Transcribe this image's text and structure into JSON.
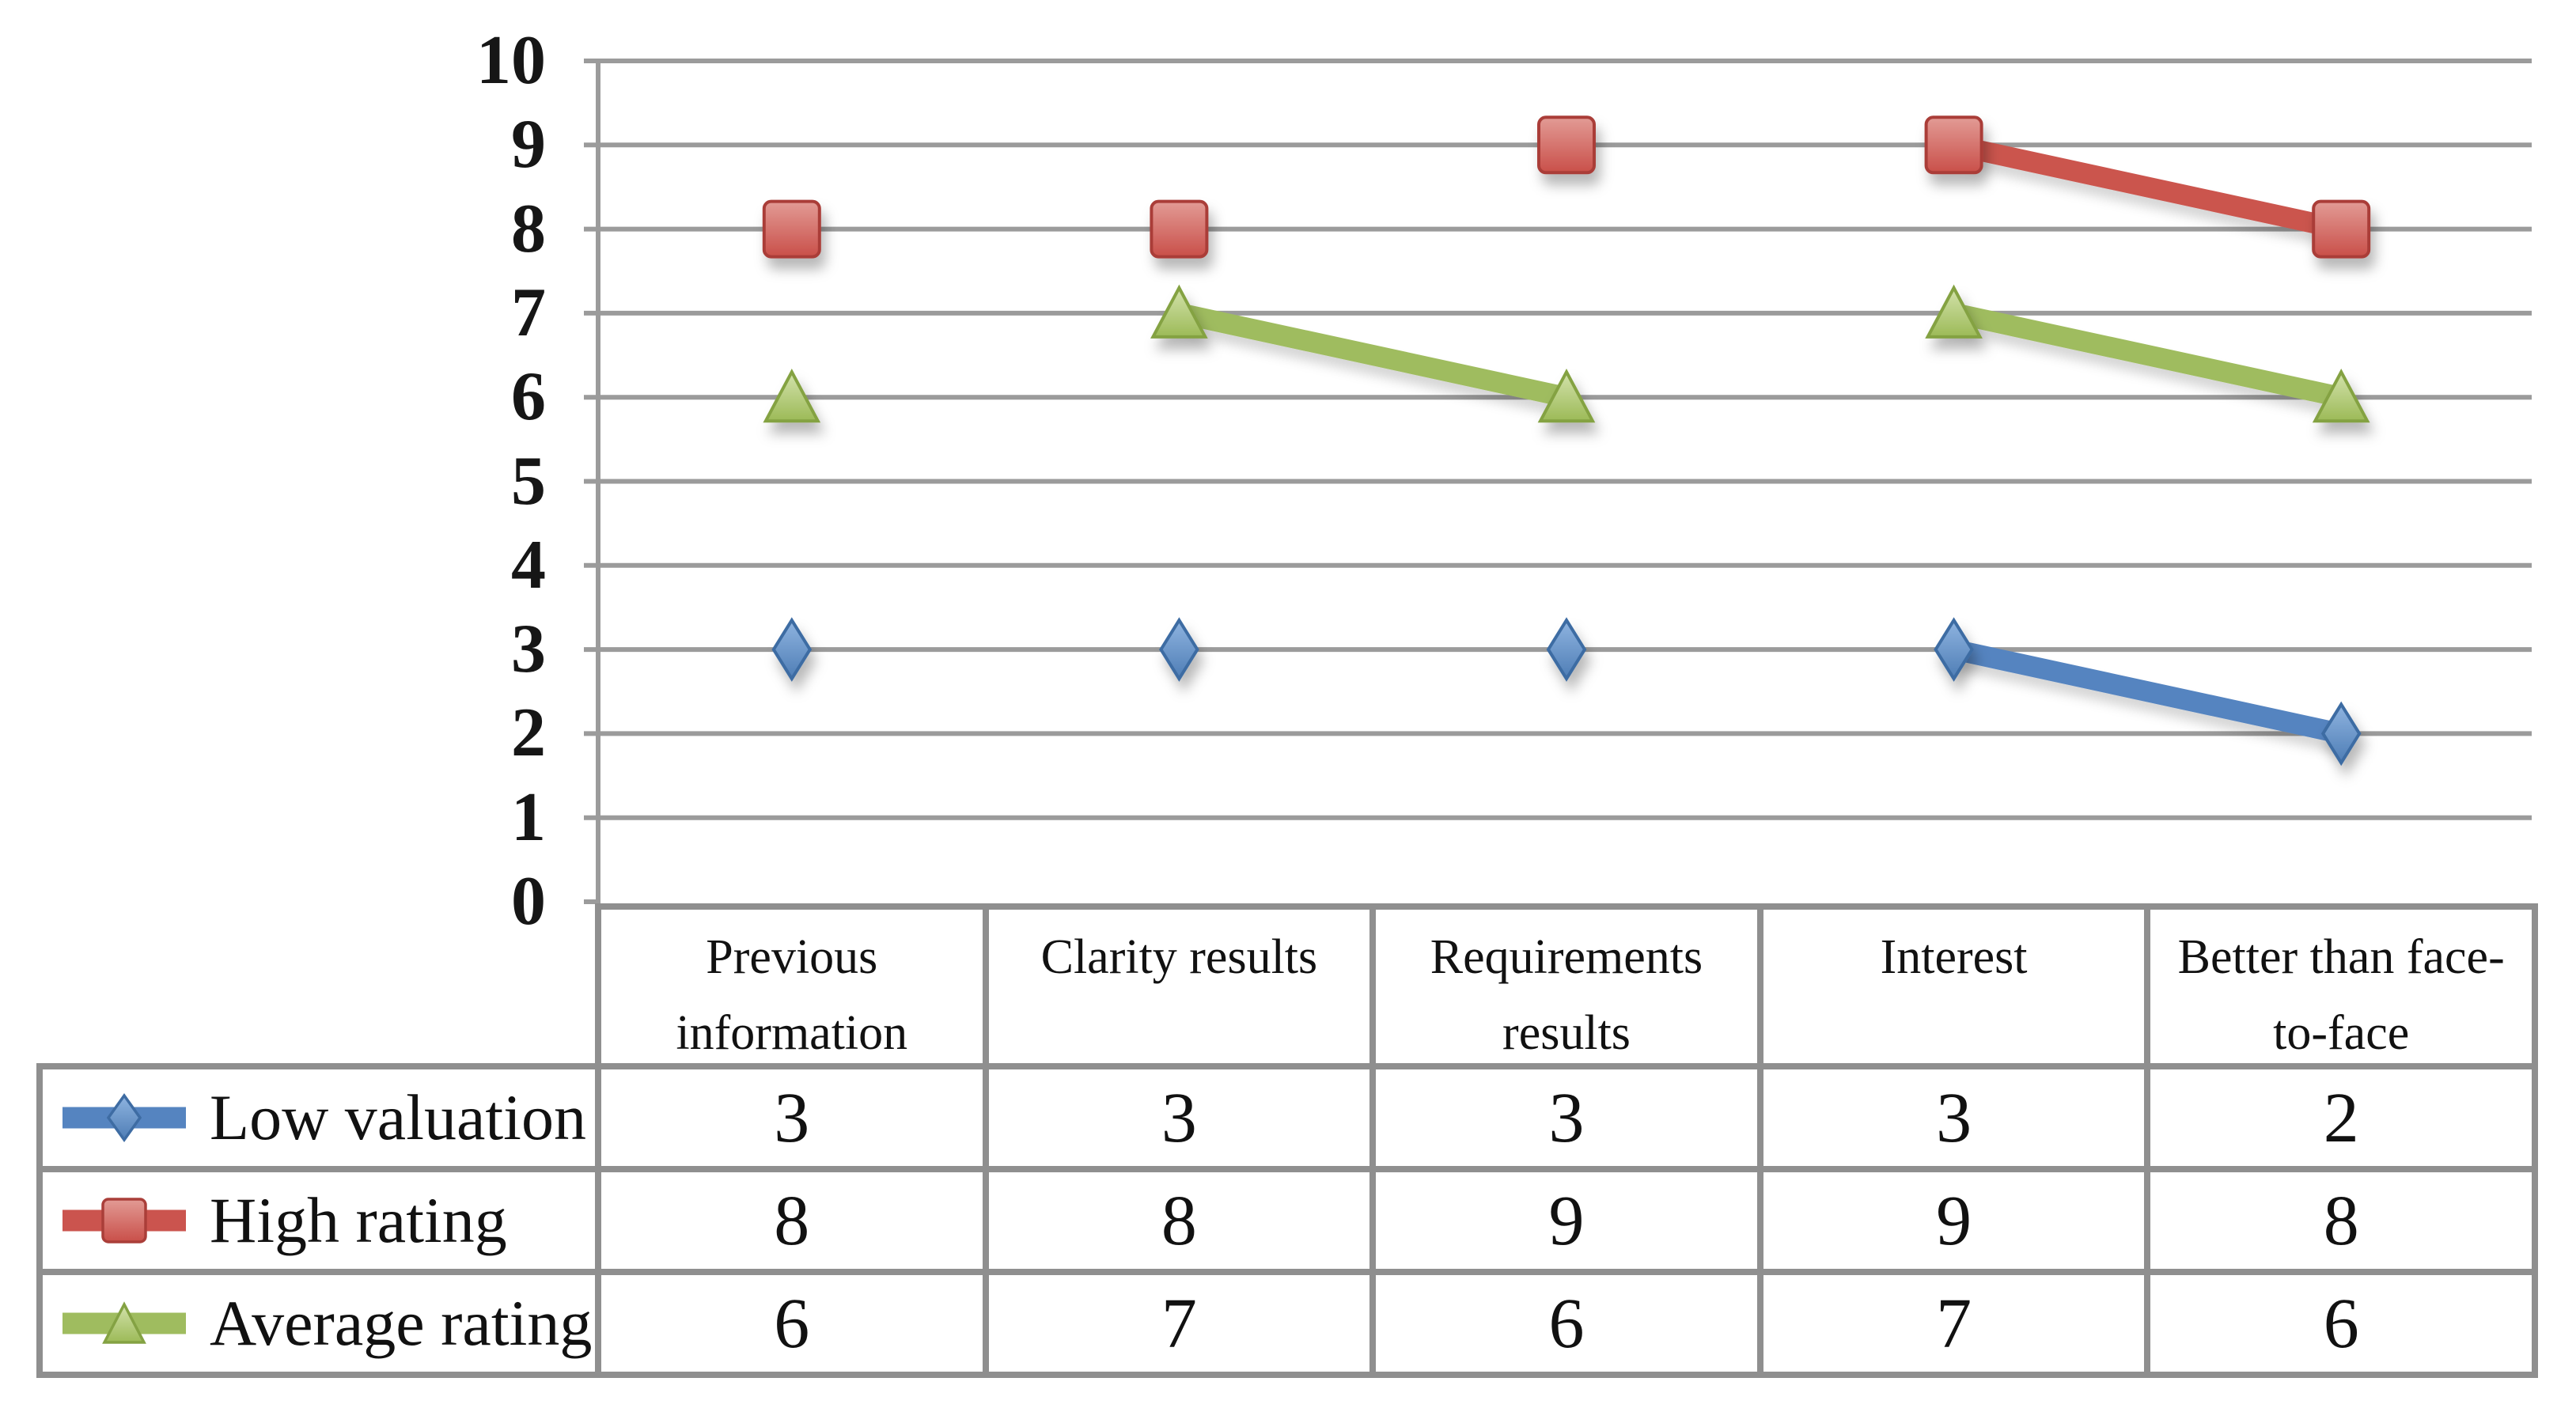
{
  "chart_data": {
    "type": "line",
    "title": "",
    "xlabel": "",
    "ylabel": "",
    "categories": [
      "Previous information",
      "Clarity results",
      "Requirements results",
      "Interest",
      "Better than face-to-face"
    ],
    "series": [
      {
        "name": "Low valuation",
        "marker": "diamond",
        "values": [
          3,
          3,
          3,
          3,
          2
        ],
        "line_color": "#5584C0",
        "marker_fill_top": "#8FB4E0",
        "marker_fill_bottom": "#4E7DB5",
        "marker_stroke": "#3E6CA3"
      },
      {
        "name": "High rating",
        "marker": "square",
        "values": [
          8,
          8,
          9,
          9,
          8
        ],
        "line_color": "#CB544E",
        "marker_fill_top": "#E29B95",
        "marker_fill_bottom": "#C94F49",
        "marker_stroke": "#AA3E39"
      },
      {
        "name": "Average rating",
        "marker": "triangle",
        "values": [
          6,
          7,
          6,
          7,
          6
        ],
        "line_color": "#9FBC5F",
        "marker_fill_top": "#D3E2AC",
        "marker_fill_bottom": "#9CBA57",
        "marker_stroke": "#84A243"
      }
    ],
    "ylim": [
      0,
      10
    ],
    "yticks": [
      0,
      1,
      2,
      3,
      4,
      5,
      6,
      7,
      8,
      9,
      10
    ],
    "grid": true,
    "gridline_color": "#9B9B9B",
    "axis_color": "#9B9B9B",
    "legend_position": "table-left",
    "visual_segments": [
      {
        "series": 0,
        "v1": 3,
        "v2": 3,
        "from": "edge-left",
        "to": "edge-right"
      },
      {
        "series": 0,
        "v1": 3,
        "v2": 2,
        "from": 3,
        "to": 4
      },
      {
        "series": 1,
        "v1": 9,
        "v2": 9,
        "from": "edge-left",
        "to": "edge-right"
      },
      {
        "series": 1,
        "v1": 8,
        "v2": 8,
        "from": "edge-left",
        "to": "edge-right"
      },
      {
        "series": 1,
        "v1": 9,
        "v2": 8,
        "from": 3,
        "to": 4
      },
      {
        "series": 2,
        "v1": 6,
        "v2": 6,
        "from": 0,
        "to": 1
      },
      {
        "series": 2,
        "v1": 7,
        "v2": 6,
        "from": 1,
        "to": 2
      },
      {
        "series": 2,
        "v1": 6,
        "v2": 6,
        "from": 2,
        "to": 3
      },
      {
        "series": 2,
        "v1": 7,
        "v2": 6,
        "from": 3,
        "to": 4
      }
    ]
  },
  "table": {
    "border_color": "#8F8F8F",
    "cell_bg": "#FFFFFF",
    "row_headers": [
      "Low valuation",
      "High rating",
      "Average rating"
    ]
  }
}
